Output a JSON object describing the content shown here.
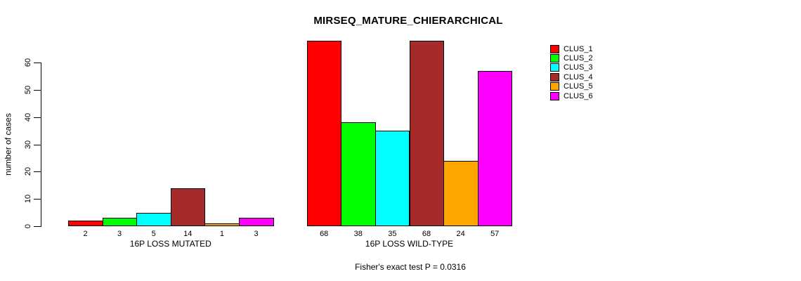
{
  "chart_data": {
    "type": "bar",
    "title": "MIRSEQ_MATURE_CHIERARCHICAL",
    "ylabel": "number of cases",
    "xlabel": "",
    "annotation": "Fisher's exact test P = 0.0316",
    "groups": [
      "16P LOSS MUTATED",
      "16P LOSS WILD-TYPE"
    ],
    "series": [
      {
        "name": "CLUS_1",
        "color": "#FF0000",
        "values": [
          2,
          68
        ]
      },
      {
        "name": "CLUS_2",
        "color": "#00FF00",
        "values": [
          3,
          38
        ]
      },
      {
        "name": "CLUS_3",
        "color": "#00FFFF",
        "values": [
          5,
          35
        ]
      },
      {
        "name": "CLUS_4",
        "color": "#A52A2A",
        "values": [
          14,
          68
        ]
      },
      {
        "name": "CLUS_5",
        "color": "#FFA500",
        "values": [
          1,
          24
        ]
      },
      {
        "name": "CLUS_6",
        "color": "#FF00FF",
        "values": [
          3,
          57
        ]
      }
    ],
    "bar_value_labels": [
      [
        "2",
        "3",
        "5",
        "14",
        "1",
        "3"
      ],
      [
        "68",
        "38",
        "35",
        "68",
        "24",
        "57"
      ]
    ],
    "yticks": [
      0,
      10,
      20,
      30,
      40,
      50,
      60
    ],
    "ylim": [
      0,
      60
    ],
    "grid": false,
    "legend_position": "right",
    "legend_entries": [
      "CLUS_1",
      "CLUS_2",
      "CLUS_3",
      "CLUS_4",
      "CLUS_5",
      "CLUS_6"
    ],
    "axis_color": "#000000",
    "background_color": "#FFFFFF"
  }
}
